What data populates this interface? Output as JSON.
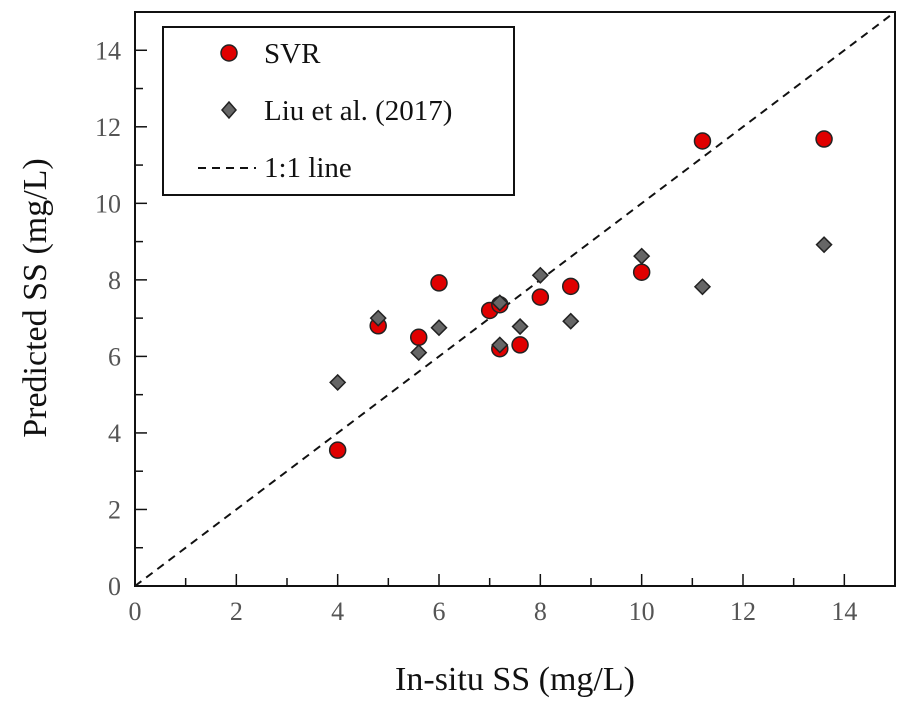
{
  "chart_data": {
    "type": "scatter",
    "title": "",
    "xlabel": "In-situ SS (mg/L)",
    "ylabel": "Predicted SS (mg/L)",
    "xlim": [
      0,
      15
    ],
    "ylim": [
      0,
      15
    ],
    "x_ticks": [
      0,
      2,
      4,
      6,
      8,
      10,
      12,
      14
    ],
    "y_ticks": [
      0,
      2,
      4,
      6,
      8,
      10,
      12,
      14
    ],
    "x_tick_labels": [
      "0",
      "2",
      "4",
      "6",
      "8",
      "10",
      "12",
      "14"
    ],
    "y_tick_labels": [
      "0",
      "2",
      "4",
      "6",
      "8",
      "10",
      "12",
      "14"
    ],
    "grid": false,
    "legend_position": "top-left",
    "series": [
      {
        "name": "SVR",
        "marker": "circle",
        "color": "#e00000",
        "points": [
          {
            "x": 4.0,
            "y": 3.55
          },
          {
            "x": 4.8,
            "y": 6.8
          },
          {
            "x": 5.6,
            "y": 6.5
          },
          {
            "x": 6.0,
            "y": 7.92
          },
          {
            "x": 7.0,
            "y": 7.2
          },
          {
            "x": 7.2,
            "y": 7.35
          },
          {
            "x": 7.2,
            "y": 6.2
          },
          {
            "x": 7.6,
            "y": 6.3
          },
          {
            "x": 8.0,
            "y": 7.55
          },
          {
            "x": 8.6,
            "y": 7.83
          },
          {
            "x": 10.0,
            "y": 8.2
          },
          {
            "x": 11.2,
            "y": 11.63
          },
          {
            "x": 13.6,
            "y": 11.68
          }
        ]
      },
      {
        "name": "Liu et al. (2017)",
        "marker": "diamond",
        "color": "#666666",
        "points": [
          {
            "x": 4.0,
            "y": 5.32
          },
          {
            "x": 4.8,
            "y": 7.0
          },
          {
            "x": 5.6,
            "y": 6.1
          },
          {
            "x": 6.0,
            "y": 6.75
          },
          {
            "x": 7.2,
            "y": 6.3
          },
          {
            "x": 7.2,
            "y": 7.4
          },
          {
            "x": 7.6,
            "y": 6.78
          },
          {
            "x": 8.0,
            "y": 8.12
          },
          {
            "x": 8.6,
            "y": 6.92
          },
          {
            "x": 10.0,
            "y": 8.62
          },
          {
            "x": 11.2,
            "y": 7.82
          },
          {
            "x": 13.6,
            "y": 8.92
          }
        ]
      }
    ],
    "reference_line": {
      "name": "1:1 line",
      "style": "dashed",
      "from": [
        0,
        0
      ],
      "to": [
        15,
        15
      ]
    }
  }
}
